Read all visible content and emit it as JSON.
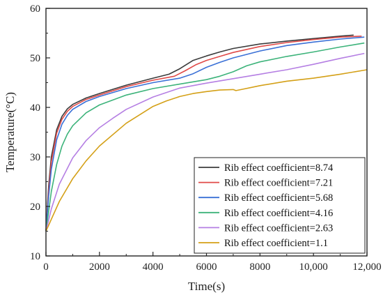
{
  "chart_data": {
    "type": "line",
    "title": "",
    "xlabel": "Time(s)",
    "ylabel": "Temperature(°C)",
    "xlim": [
      0,
      12000
    ],
    "ylim": [
      10,
      60
    ],
    "x_ticks": [
      0,
      2000,
      4000,
      6000,
      8000,
      10000,
      12000
    ],
    "x_tick_labels": [
      "0",
      "2000",
      "4000",
      "6000",
      "8000",
      "10,000",
      "12,000"
    ],
    "y_ticks": [
      10,
      20,
      30,
      40,
      50,
      60
    ],
    "y_tick_labels": [
      "10",
      "20",
      "30",
      "40",
      "50",
      "60"
    ],
    "grid": false,
    "legend_position": "bottom-right",
    "series": [
      {
        "name": "Rib effect coefficient=8.74",
        "color": "#3b3b3b",
        "x": [
          0,
          100,
          200,
          400,
          600,
          800,
          1000,
          1500,
          2000,
          3000,
          4000,
          4600,
          5000,
          5500,
          6000,
          6500,
          7000,
          8000,
          9000,
          10000,
          11000,
          11500
        ],
        "y": [
          15.0,
          24.0,
          30.0,
          35.5,
          38.2,
          39.7,
          40.6,
          41.9,
          42.8,
          44.5,
          45.9,
          46.7,
          47.8,
          49.5,
          50.4,
          51.2,
          51.9,
          52.8,
          53.4,
          53.9,
          54.4,
          54.6
        ]
      },
      {
        "name": "Rib effect coefficient=7.21",
        "color": "#e04a48",
        "x": [
          0,
          100,
          200,
          400,
          600,
          800,
          1000,
          1500,
          2000,
          3000,
          4000,
          4800,
          5200,
          5600,
          6000,
          6500,
          7000,
          8000,
          9000,
          10000,
          11000,
          11800
        ],
        "y": [
          15.0,
          23.0,
          29.0,
          34.8,
          37.6,
          39.2,
          40.2,
          41.6,
          42.5,
          44.2,
          45.5,
          46.3,
          47.4,
          48.6,
          49.5,
          50.3,
          51.1,
          52.3,
          53.1,
          53.7,
          54.2,
          54.4
        ]
      },
      {
        "name": "Rib effect coefficient=5.68",
        "color": "#3a70d6",
        "x": [
          0,
          100,
          200,
          400,
          600,
          800,
          1000,
          1500,
          2000,
          3000,
          4000,
          5000,
          5500,
          6000,
          6500,
          7000,
          8000,
          9000,
          10000,
          11000,
          11900
        ],
        "y": [
          15.0,
          22.0,
          27.5,
          33.5,
          36.6,
          38.4,
          39.6,
          41.2,
          42.2,
          43.8,
          45.0,
          45.9,
          46.8,
          48.1,
          49.1,
          50.0,
          51.4,
          52.5,
          53.2,
          53.8,
          54.2
        ]
      },
      {
        "name": "Rib effect coefficient=4.16",
        "color": "#3cb37a",
        "x": [
          0,
          200,
          400,
          600,
          800,
          1000,
          1500,
          2000,
          3000,
          4000,
          5000,
          6000,
          6500,
          7000,
          7500,
          8000,
          9000,
          10000,
          11000,
          11900
        ],
        "y": [
          15.0,
          23.0,
          28.5,
          32.2,
          34.6,
          36.3,
          38.9,
          40.5,
          42.5,
          43.8,
          44.7,
          45.6,
          46.3,
          47.2,
          48.4,
          49.2,
          50.3,
          51.2,
          52.2,
          53.0
        ]
      },
      {
        "name": "Rib effect coefficient=2.63",
        "color": "#b57fe3",
        "x": [
          0,
          200,
          500,
          1000,
          1500,
          2000,
          2500,
          3000,
          4000,
          5000,
          6000,
          7000,
          8000,
          9000,
          10000,
          11000,
          11900
        ],
        "y": [
          15.0,
          19.5,
          24.5,
          29.8,
          33.3,
          35.9,
          37.8,
          39.6,
          42.1,
          43.9,
          44.9,
          45.8,
          46.7,
          47.6,
          48.7,
          49.9,
          50.9
        ]
      },
      {
        "name": "Rib effect coefficient=1.1",
        "color": "#d4a017",
        "x": [
          0,
          500,
          1000,
          1500,
          2000,
          3000,
          4000,
          4500,
          5000,
          5500,
          6000,
          6500,
          7000,
          7100,
          7300,
          8000,
          9000,
          10000,
          11000,
          12000
        ],
        "y": [
          15.0,
          21.0,
          25.6,
          29.2,
          32.2,
          36.8,
          40.2,
          41.3,
          42.2,
          42.8,
          43.2,
          43.5,
          43.6,
          43.4,
          43.6,
          44.4,
          45.3,
          45.9,
          46.7,
          47.6
        ]
      }
    ]
  }
}
